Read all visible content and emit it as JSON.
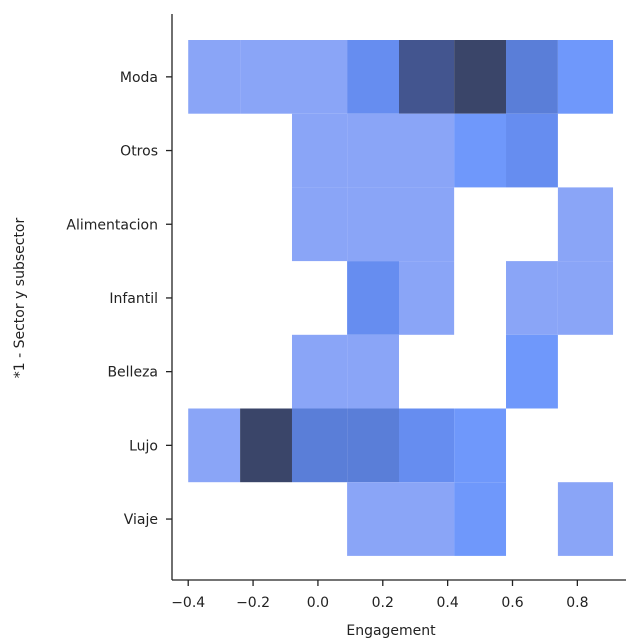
{
  "chart_data": {
    "type": "heatmap",
    "title": "",
    "xlabel": "Engagement",
    "ylabel": "*1 - Sector y subsector",
    "x_bin_edges": [
      -0.4,
      -0.24,
      -0.08,
      0.09,
      0.25,
      0.42,
      0.58,
      0.74,
      0.91
    ],
    "xlim": [
      -0.45,
      0.95
    ],
    "x_ticks": [
      -0.4,
      -0.2,
      0.0,
      0.2,
      0.4,
      0.6,
      0.8
    ],
    "x_tick_labels": [
      "−0.4",
      "−0.2",
      "0.0",
      "0.2",
      "0.4",
      "0.6",
      "0.8"
    ],
    "categories": [
      "Moda",
      "Otros",
      "Alimentacion",
      "Infantil",
      "Belleza",
      "Lujo",
      "Viaje"
    ],
    "counts": [
      [
        1,
        1,
        1,
        3,
        6,
        7,
        4,
        2
      ],
      [
        0,
        0,
        1,
        1,
        1,
        2,
        3,
        0
      ],
      [
        0,
        0,
        1,
        1,
        1,
        0,
        0,
        1
      ],
      [
        0,
        0,
        0,
        3,
        1,
        0,
        1,
        1
      ],
      [
        0,
        0,
        1,
        1,
        0,
        0,
        2,
        0
      ],
      [
        1,
        7,
        4,
        4,
        3,
        2,
        0,
        0
      ],
      [
        0,
        0,
        0,
        1,
        1,
        2,
        0,
        1
      ]
    ],
    "colormap": [
      "#a3b3f4",
      "#8aa5f7",
      "#6f98fb",
      "#668df0",
      "#5a7ed8",
      "#4d68b4",
      "#43558f",
      "#3a4569"
    ],
    "grid": false,
    "legend": "none"
  }
}
